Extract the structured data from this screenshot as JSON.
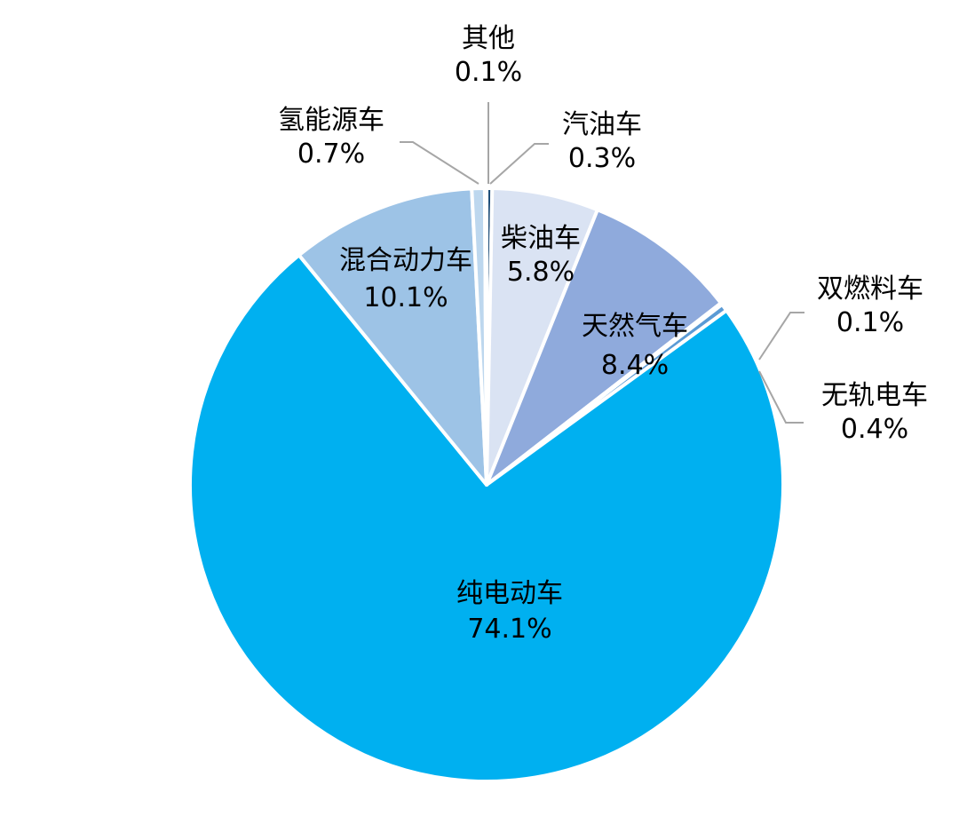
{
  "chart_data": {
    "type": "pie",
    "title": "",
    "slices": [
      {
        "name": "汽油车",
        "value": 0.3,
        "label": "0.3%",
        "color": "#1f4e79"
      },
      {
        "name": "柴油车",
        "value": 5.8,
        "label": "5.8%",
        "color": "#dae3f3"
      },
      {
        "name": "天然气车",
        "value": 8.4,
        "label": "8.4%",
        "color": "#8faadc"
      },
      {
        "name": "双燃料车",
        "value": 0.1,
        "label": "0.1%",
        "color": "#2e75b6"
      },
      {
        "name": "无轨电车",
        "value": 0.4,
        "label": "0.4%",
        "color": "#5b9bd5"
      },
      {
        "name": "纯电动车",
        "value": 74.1,
        "label": "74.1%",
        "color": "#00b0f0"
      },
      {
        "name": "混合动力车",
        "value": 10.1,
        "label": "10.1%",
        "color": "#9dc3e6"
      },
      {
        "name": "氢能源车",
        "value": 0.7,
        "label": "0.7%",
        "color": "#bdd7ee"
      },
      {
        "name": "其他",
        "value": 0.1,
        "label": "0.1%",
        "color": "#44546a"
      }
    ]
  }
}
